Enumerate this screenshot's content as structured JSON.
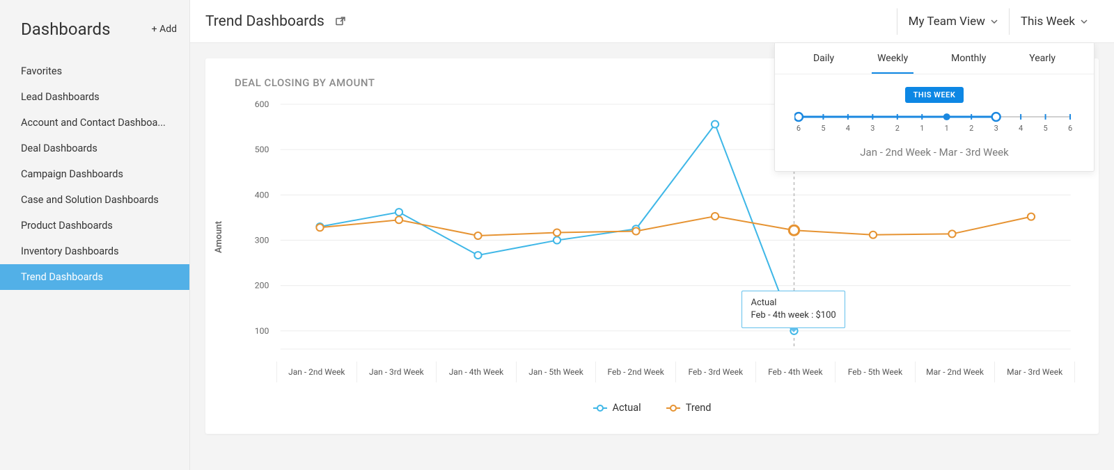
{
  "sidebar": {
    "title": "Dashboards",
    "add_label": "+ Add",
    "items": [
      {
        "label": "Favorites",
        "active": false
      },
      {
        "label": "Lead Dashboards",
        "active": false
      },
      {
        "label": "Account and Contact Dashboa...",
        "active": false
      },
      {
        "label": "Deal Dashboards",
        "active": false
      },
      {
        "label": "Campaign Dashboards",
        "active": false
      },
      {
        "label": "Case and Solution Dashboards",
        "active": false
      },
      {
        "label": "Product Dashboards",
        "active": false
      },
      {
        "label": "Inventory Dashboards",
        "active": false
      },
      {
        "label": "Trend Dashboards",
        "active": true
      }
    ]
  },
  "topbar": {
    "page_title": "Trend Dashboards",
    "view_dropdown": "My Team View",
    "period_dropdown": "This Week"
  },
  "time_panel": {
    "tabs": [
      {
        "label": "Daily",
        "active": false
      },
      {
        "label": "Weekly",
        "active": true
      },
      {
        "label": "Monthly",
        "active": false
      },
      {
        "label": "Yearly",
        "active": false
      }
    ],
    "badge": "THIS WEEK",
    "slider": {
      "ticks": [
        "6",
        "5",
        "4",
        "3",
        "2",
        "1",
        "1",
        "2",
        "3",
        "4",
        "5",
        "6"
      ],
      "handle_left_idx": 0,
      "handle_right_idx": 8,
      "pin_idx": 6,
      "bar_color": "#1b88e0",
      "handle_fill": "#ffffff",
      "tick_color": "#666666"
    },
    "range_label": "Jan - 2nd Week  -  Mar - 3rd Week"
  },
  "chart": {
    "title": "DEAL CLOSING BY AMOUNT",
    "y_axis_label": "Amount",
    "y_ticks": [
      100,
      200,
      300,
      400,
      500,
      600
    ],
    "y_min": 60,
    "y_max": 600,
    "grid_color": "#ececec",
    "axis_text_color": "#666666",
    "background": "#ffffff",
    "x_categories": [
      "Jan - 2nd Week",
      "Jan - 3rd Week",
      "Jan - 4th Week",
      "Jan - 5th Week",
      "Feb - 2nd Week",
      "Feb - 3rd Week",
      "Feb - 4th Week",
      "Feb -  5th Week",
      "Mar - 2nd Week",
      "Mar - 3rd Week"
    ],
    "series": [
      {
        "name": "Actual",
        "color": "#3fb7e7",
        "marker_fill": "#ffffff",
        "line_width": 2,
        "marker_radius": 5,
        "values": [
          330,
          362,
          267,
          300,
          325,
          556,
          100,
          null,
          null,
          null
        ]
      },
      {
        "name": "Trend",
        "color": "#e69332",
        "marker_fill": "#ffffff",
        "line_width": 2,
        "marker_radius": 5,
        "values": [
          328,
          345,
          310,
          317,
          320,
          353,
          322,
          312,
          314,
          352
        ]
      }
    ],
    "highlight_index": 6,
    "highlight_line_color": "#bdbdbd"
  },
  "tooltip": {
    "title": "Actual",
    "detail": "Feb - 4th week : $100",
    "border_color": "#63c0ec"
  },
  "legend": {
    "items": [
      {
        "label": "Actual",
        "color": "#3fb7e7"
      },
      {
        "label": "Trend",
        "color": "#e69332"
      }
    ]
  }
}
